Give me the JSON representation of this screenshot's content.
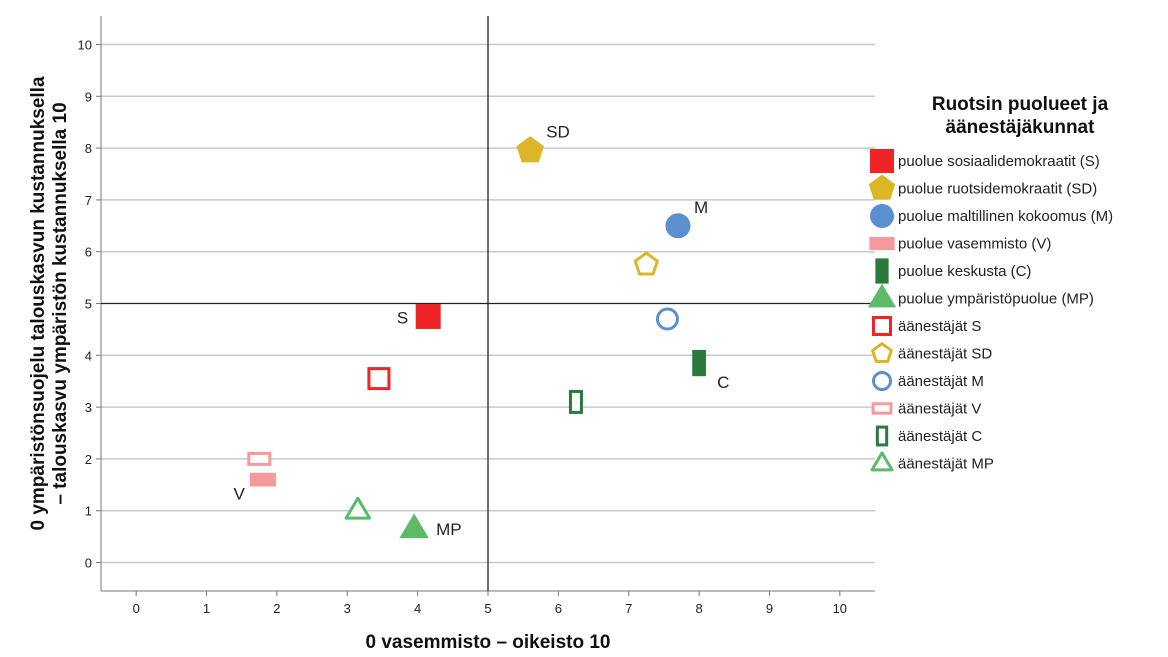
{
  "chart_data": {
    "type": "scatter",
    "xlabel": "0 vasemmisto – oikeisto 10",
    "ylabel_lines": [
      "0 ympäristönsuojelu talouskasvun kustannuksella",
      "– talouskasvu ympäristön kustannuksella 10"
    ],
    "xlim": [
      -0.5,
      10.5
    ],
    "ylim": [
      -0.55,
      10.55
    ],
    "xticks": [
      0,
      1,
      2,
      3,
      4,
      5,
      6,
      7,
      8,
      9,
      10
    ],
    "yticks": [
      0,
      1,
      2,
      3,
      4,
      5,
      6,
      7,
      8,
      9,
      10
    ],
    "x_tick_labels": [
      "0",
      "1",
      "2",
      "3",
      "4",
      "5",
      "6",
      "7",
      "8",
      "9",
      "10"
    ],
    "y_tick_labels": [
      "0",
      "1",
      "2",
      "3",
      "4",
      "5",
      "6",
      "7",
      "8",
      "9",
      "10"
    ],
    "grid": "horizontal",
    "reference_lines": {
      "x": 5,
      "y": 5
    },
    "legend_title_lines": [
      "Ruotsin puolueet ja",
      "äänestäjäkunnat"
    ],
    "legend_position": "right",
    "series": [
      {
        "name": "puolue sosiaalidemokraatit (S)",
        "marker": "square",
        "filled": true,
        "color": "#ee2426",
        "x": 4.15,
        "y": 4.75,
        "label": "S",
        "label_pos": "left"
      },
      {
        "name": "puolue ruotsidemokraatit (SD)",
        "marker": "pentagon",
        "filled": true,
        "color": "#dbb728",
        "x": 5.6,
        "y": 7.95,
        "label": "SD",
        "label_pos": "upper-right"
      },
      {
        "name": "puolue maltillinen kokoomus (M)",
        "marker": "circle",
        "filled": true,
        "color": "#5a8fd0",
        "x": 7.7,
        "y": 6.5,
        "label": "M",
        "label_pos": "upper-right"
      },
      {
        "name": "puolue vasemmisto (V)",
        "marker": "rect-wide",
        "filled": true,
        "color": "#f4999d",
        "x": 1.8,
        "y": 1.6,
        "label": "V",
        "label_pos": "lower-left"
      },
      {
        "name": "puolue keskusta (C)",
        "marker": "rect-tall",
        "filled": true,
        "color": "#2a7a3b",
        "x": 8.0,
        "y": 3.85,
        "label": "C",
        "label_pos": "lower-right"
      },
      {
        "name": "puolue ympäristöpuolue (MP)",
        "marker": "triangle",
        "filled": true,
        "color": "#5cba6a",
        "x": 3.95,
        "y": 0.65,
        "label": "MP",
        "label_pos": "right"
      },
      {
        "name": "äänestäjät S",
        "marker": "square",
        "filled": false,
        "color": "#ee2426",
        "x": 3.45,
        "y": 3.55,
        "label": ""
      },
      {
        "name": "äänestäjät SD",
        "marker": "pentagon",
        "filled": false,
        "color": "#dbb728",
        "x": 7.25,
        "y": 5.75,
        "label": ""
      },
      {
        "name": "äänestäjät M",
        "marker": "circle",
        "filled": false,
        "color": "#5a8fd0",
        "x": 7.55,
        "y": 4.7,
        "label": ""
      },
      {
        "name": "äänestäjät V",
        "marker": "rect-wide",
        "filled": false,
        "color": "#f4999d",
        "x": 1.75,
        "y": 2.0,
        "label": ""
      },
      {
        "name": "äänestäjät C",
        "marker": "rect-tall",
        "filled": false,
        "color": "#2a7a3b",
        "x": 6.25,
        "y": 3.1,
        "label": ""
      },
      {
        "name": "äänestäjät MP",
        "marker": "triangle",
        "filled": false,
        "color": "#5cba6a",
        "x": 3.15,
        "y": 1.0,
        "label": ""
      }
    ]
  }
}
